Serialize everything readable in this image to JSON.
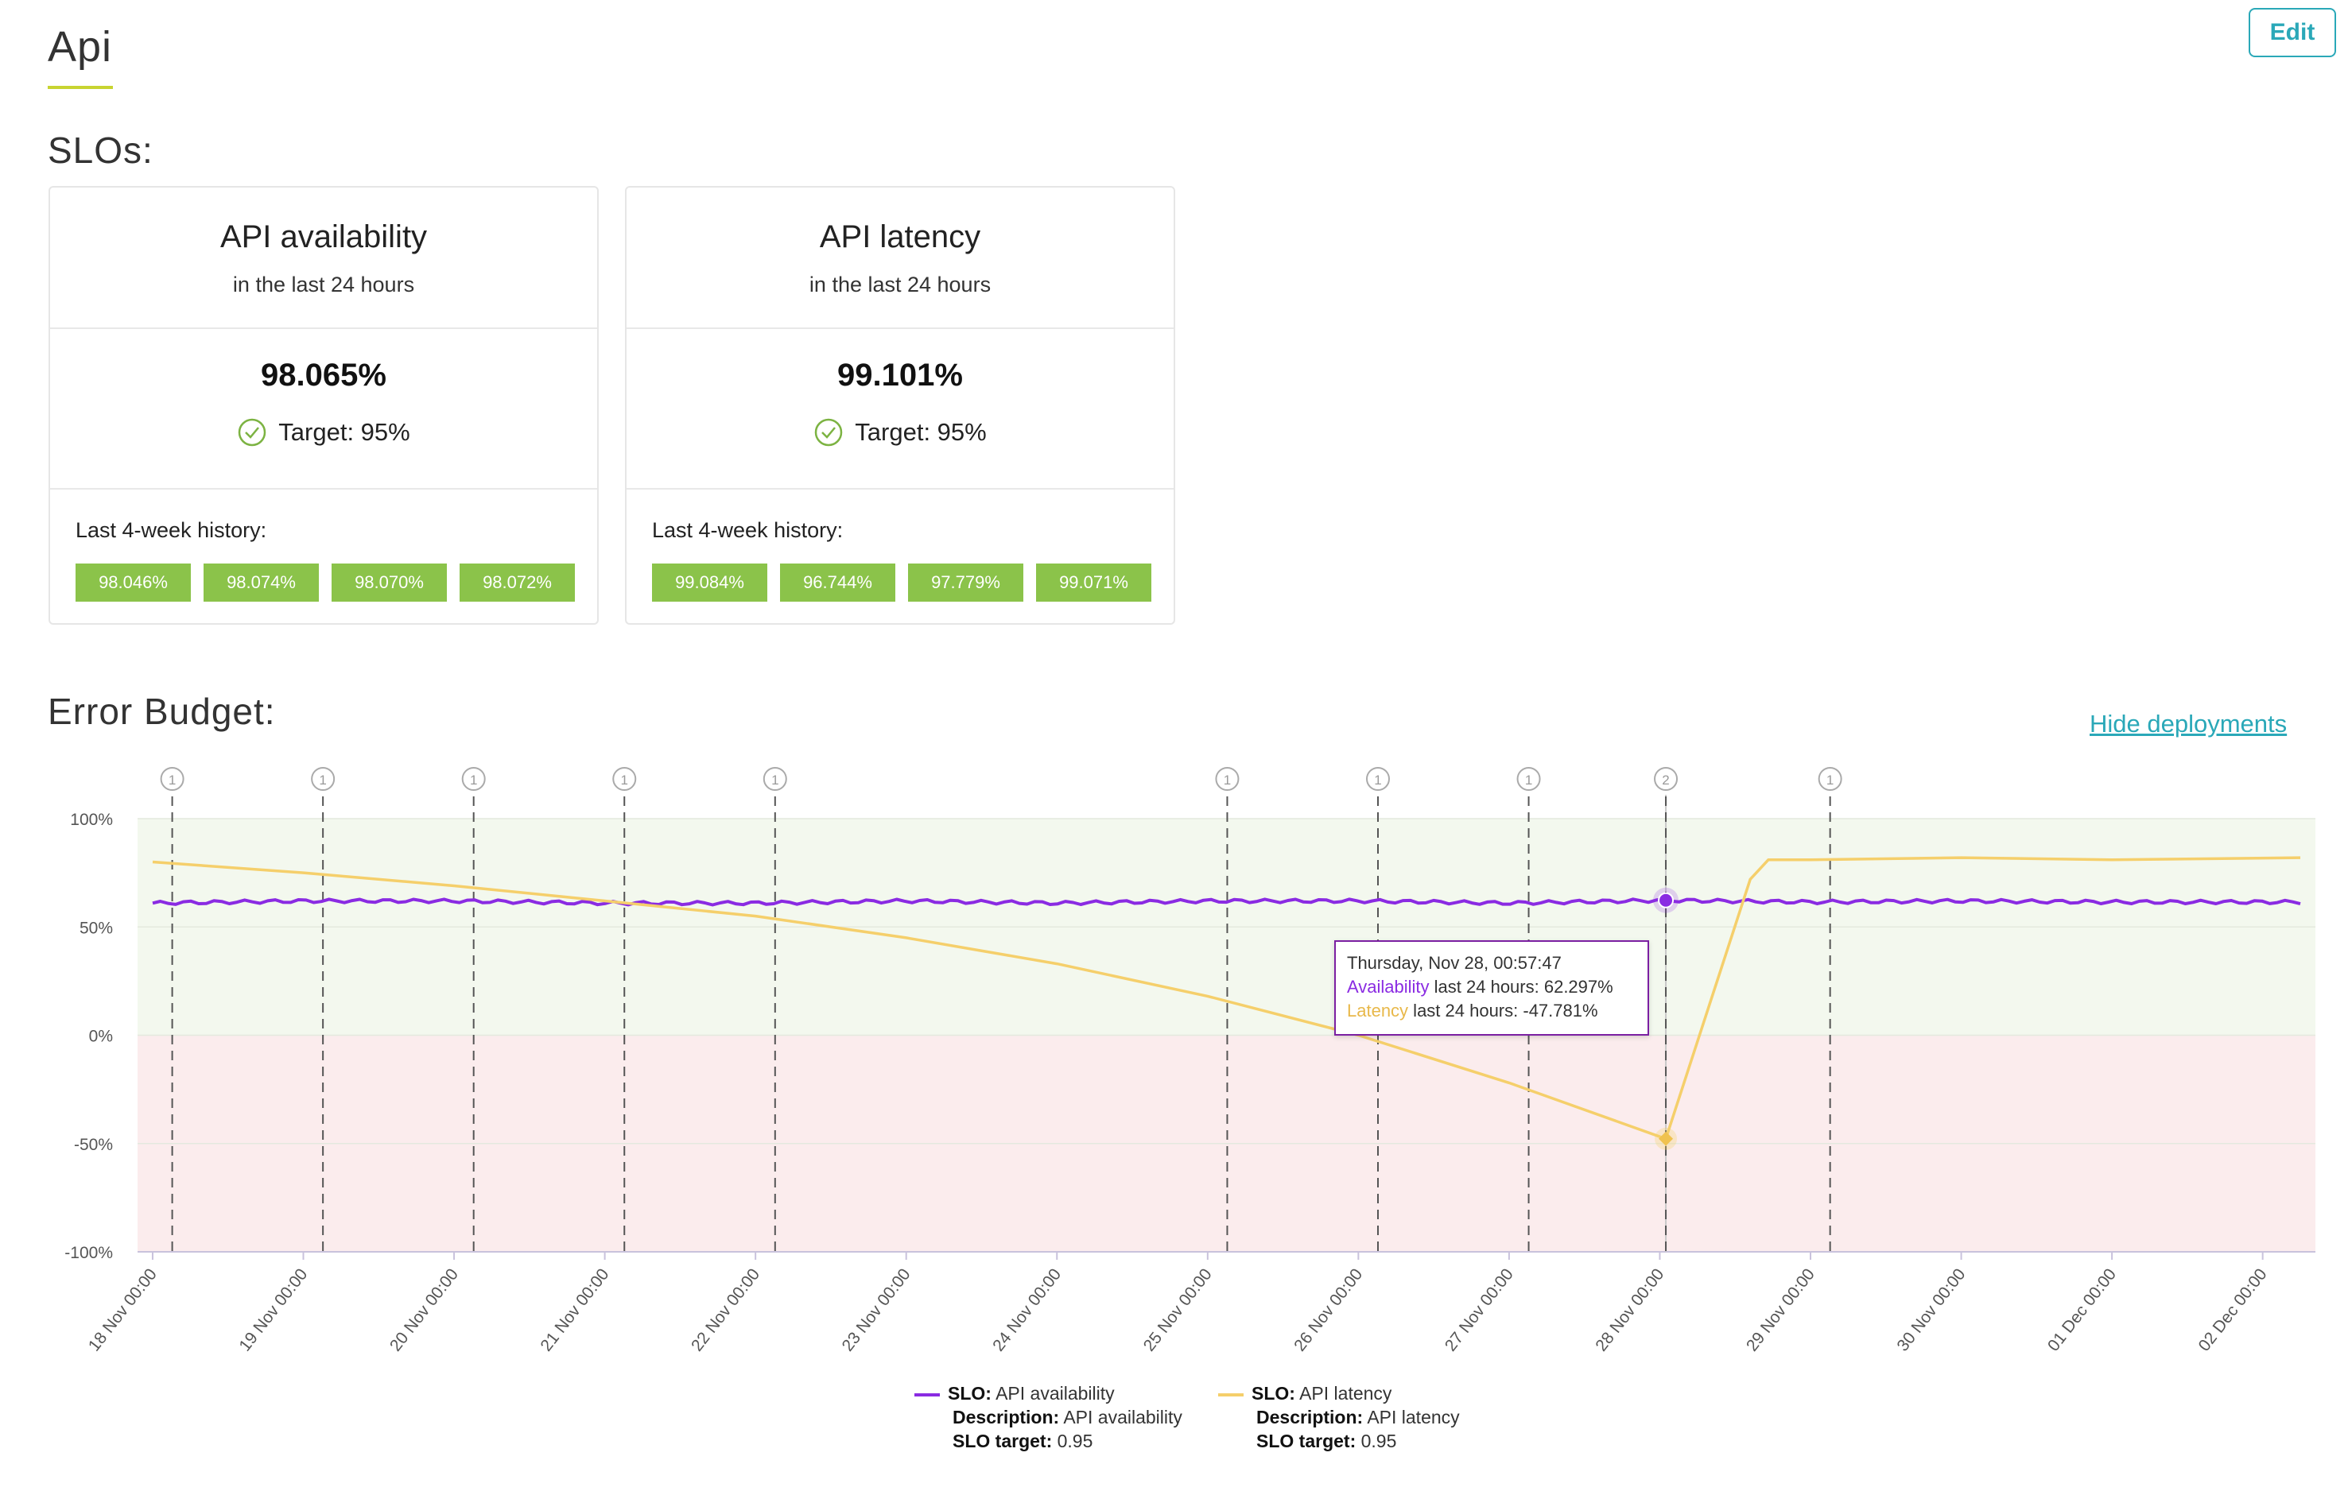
{
  "page": {
    "title": "Api",
    "edit_label": "Edit"
  },
  "slos_title": "SLOs:",
  "slos": [
    {
      "title": "API availability",
      "subtitle": "in the last 24 hours",
      "value": "98.065%",
      "target": "Target: 95%",
      "history_label": "Last 4-week history:",
      "history": [
        "98.046%",
        "98.074%",
        "98.070%",
        "98.072%"
      ]
    },
    {
      "title": "API latency",
      "subtitle": "in the last 24 hours",
      "value": "99.101%",
      "target": "Target: 95%",
      "history_label": "Last 4-week history:",
      "history": [
        "99.084%",
        "96.744%",
        "97.779%",
        "99.071%"
      ]
    }
  ],
  "error_budget": {
    "title": "Error Budget:",
    "hide_deployments_label": "Hide deployments",
    "tooltip": {
      "date": "Thursday, Nov 28, 00:57:47",
      "availability_name": "Availability",
      "availability_rest": " last 24 hours: 62.297%",
      "latency_name": "Latency",
      "latency_rest": " last 24 hours: -47.781%"
    },
    "legend": [
      {
        "slo_label": "SLO:",
        "slo_name": "API availability",
        "desc_label": "Description:",
        "desc": "API availability",
        "target_label": "SLO target:",
        "target": "0.95",
        "color": "#8a2be2"
      },
      {
        "slo_label": "SLO:",
        "slo_name": "API latency",
        "desc_label": "Description:",
        "desc": "API latency",
        "target_label": "SLO target:",
        "target": "0.95",
        "color": "#f5cf6b"
      }
    ]
  },
  "chart_data": {
    "type": "line",
    "x_unit": "days from 18 Nov 00:00",
    "x_ticks": [
      "18 Nov 00:00",
      "19 Nov 00:00",
      "20 Nov 00:00",
      "21 Nov 00:00",
      "22 Nov 00:00",
      "23 Nov 00:00",
      "24 Nov 00:00",
      "25 Nov 00:00",
      "26 Nov 00:00",
      "27 Nov 00:00",
      "28 Nov 00:00",
      "29 Nov 00:00",
      "30 Nov 00:00",
      "01 Dec 00:00",
      "02 Dec 00:00"
    ],
    "y_ticks": [
      "100%",
      "50%",
      "0%",
      "-50%",
      "-100%"
    ],
    "ylim": [
      -100,
      100
    ],
    "xlim": [
      -0.1,
      14.35
    ],
    "zones": [
      {
        "from": 0,
        "to": 100,
        "color": "#f3f8ee"
      },
      {
        "from": -100,
        "to": 0,
        "color": "#fbeced"
      }
    ],
    "deployments": [
      {
        "x": 0.13,
        "count": "1"
      },
      {
        "x": 1.13,
        "count": "1"
      },
      {
        "x": 2.13,
        "count": "1"
      },
      {
        "x": 3.13,
        "count": "1"
      },
      {
        "x": 4.13,
        "count": "1"
      },
      {
        "x": 7.13,
        "count": "1"
      },
      {
        "x": 8.13,
        "count": "1"
      },
      {
        "x": 9.13,
        "count": "1"
      },
      {
        "x": 10.04,
        "count": "2"
      },
      {
        "x": 11.13,
        "count": "1"
      }
    ],
    "cursor_x": 10.04,
    "series": [
      {
        "name": "API availability",
        "color": "#8a2be2",
        "x": [
          0,
          1,
          2,
          3,
          4,
          5,
          6,
          7,
          8,
          9,
          10.04,
          11,
          12,
          13,
          14.25
        ],
        "y": [
          61,
          62,
          62,
          61,
          61,
          62,
          61,
          62,
          62,
          61,
          62.3,
          61.5,
          62,
          61.5,
          61.5
        ]
      },
      {
        "name": "API latency",
        "color": "#f5cf6b",
        "x": [
          0,
          1,
          2,
          3,
          4,
          5,
          6,
          7,
          8,
          9,
          10.04,
          10.6,
          10.72,
          11,
          12,
          13,
          14.25
        ],
        "y": [
          80,
          75,
          69,
          62,
          55,
          45,
          33,
          18,
          0,
          -22,
          -47.8,
          72,
          81,
          81,
          82,
          81,
          82
        ]
      }
    ]
  }
}
